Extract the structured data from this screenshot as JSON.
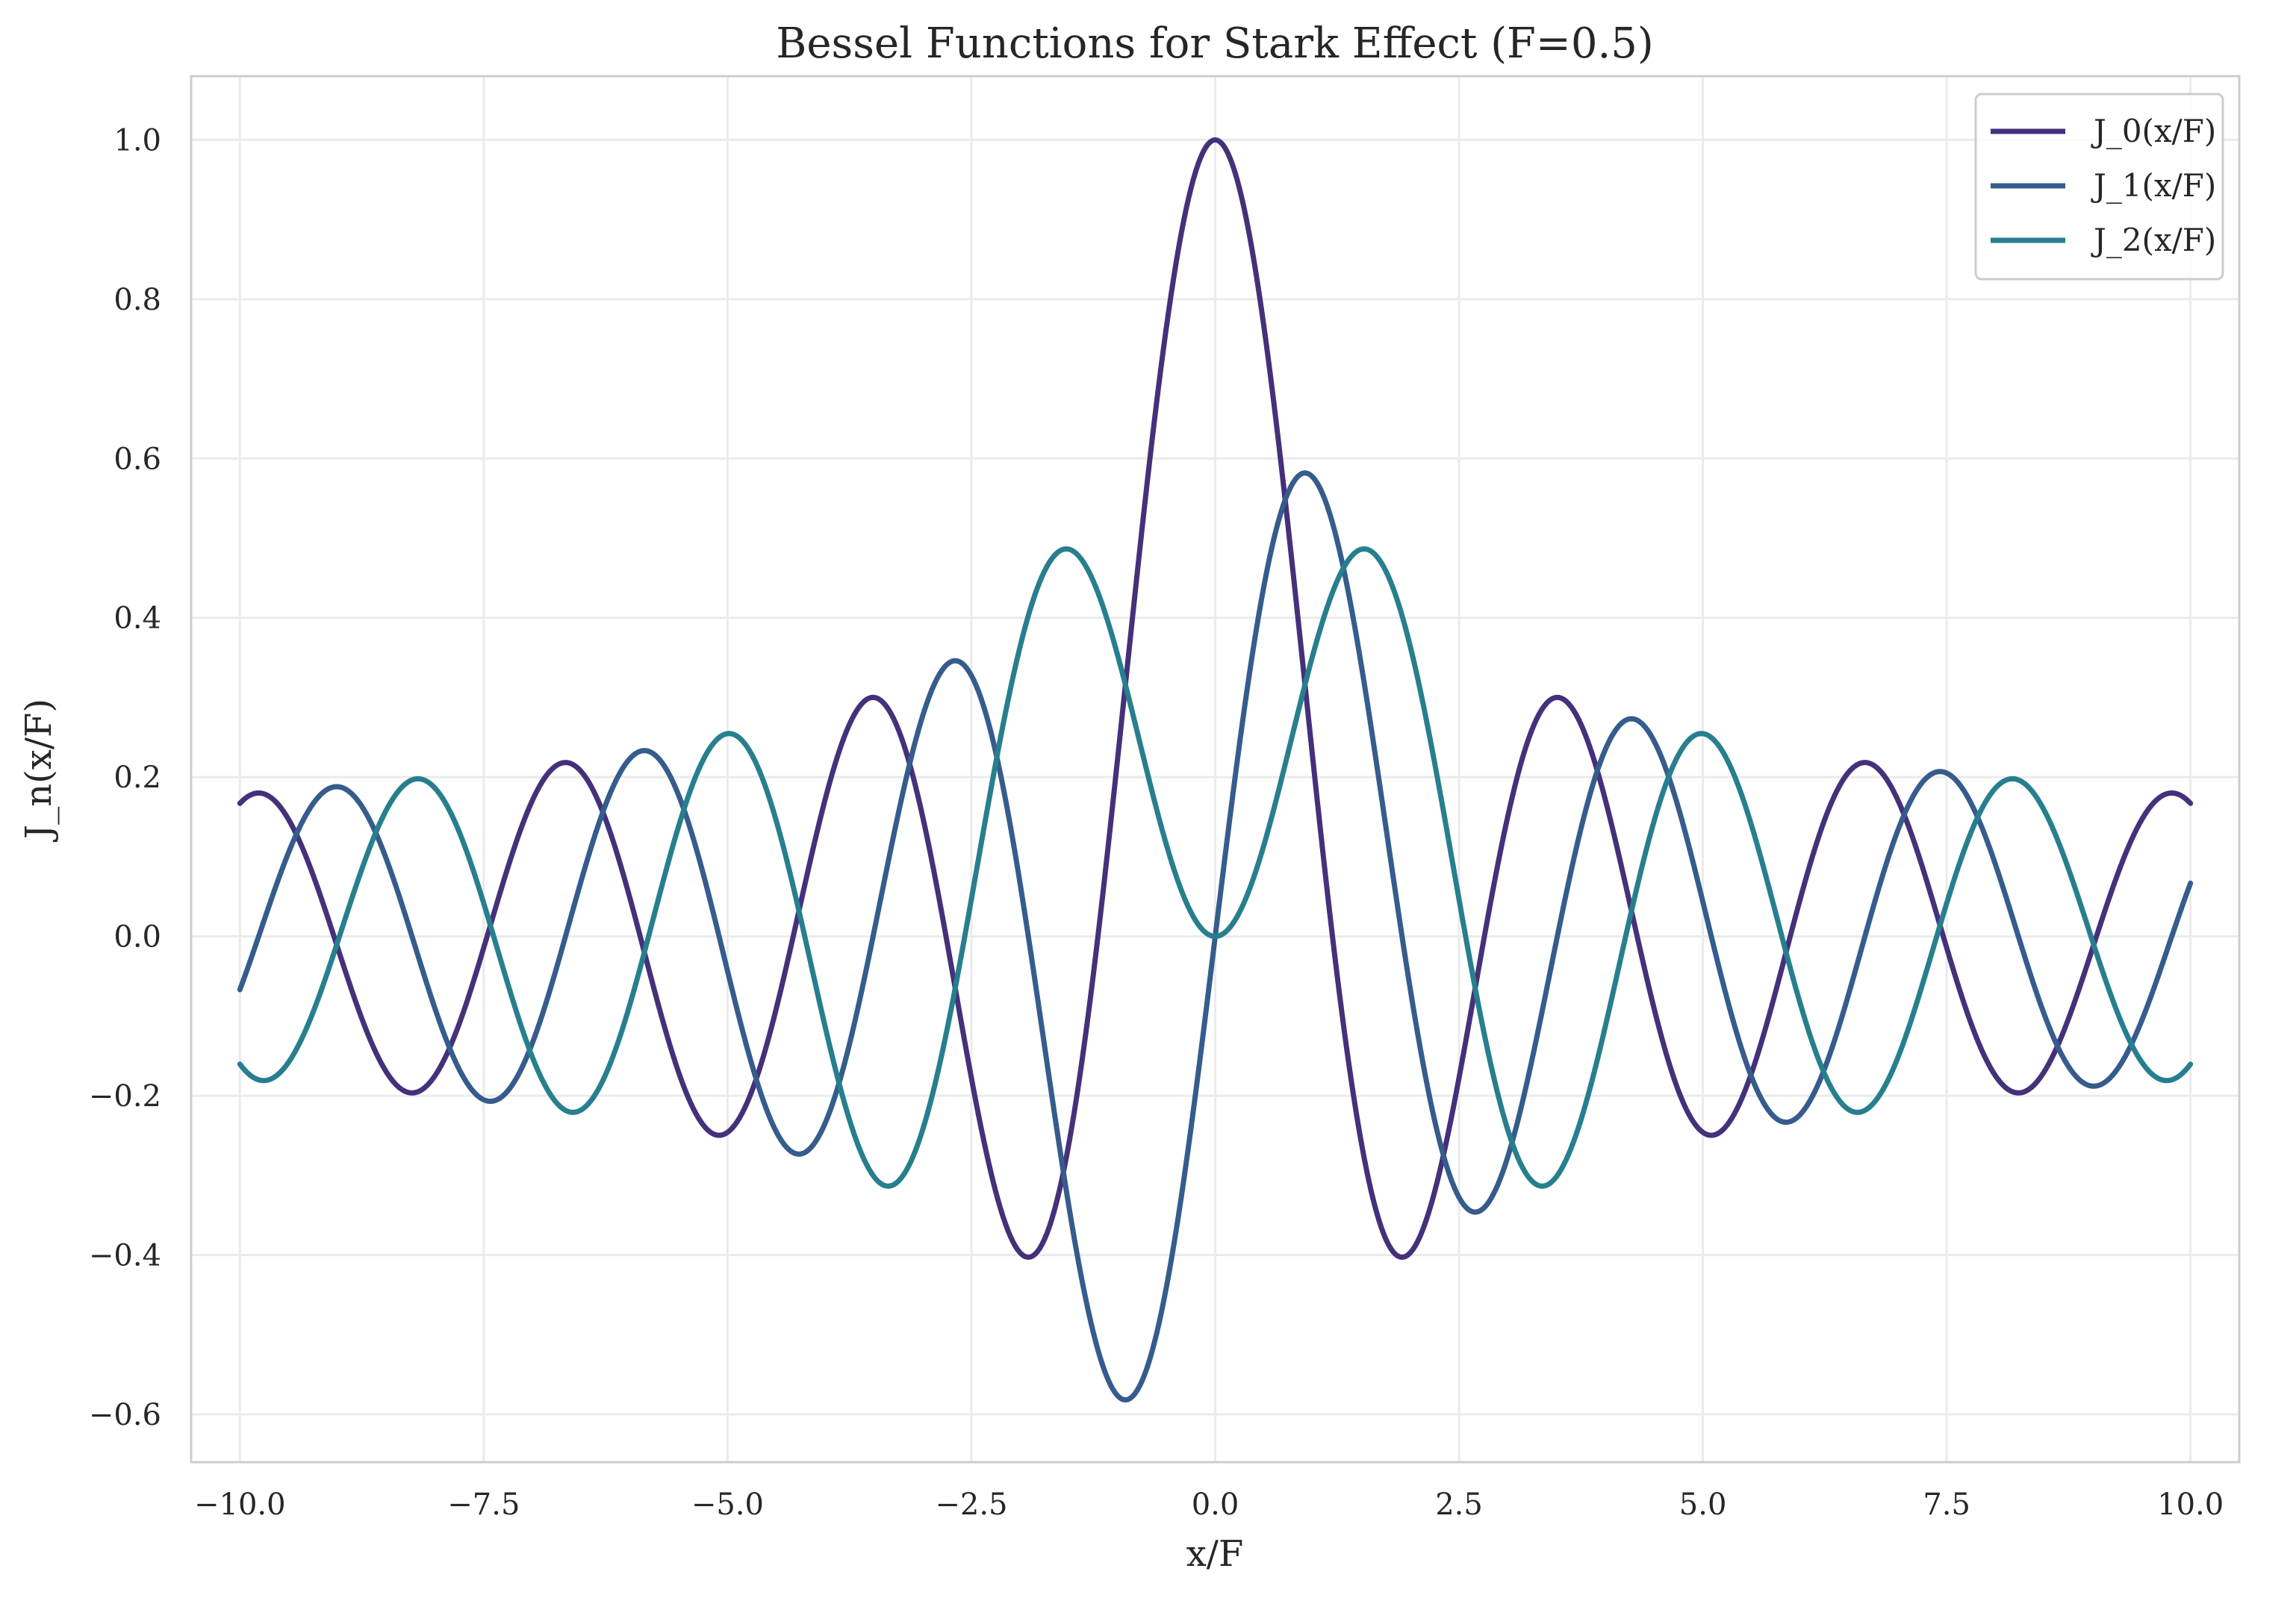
{
  "chart_data": {
    "type": "line",
    "title": "Bessel Functions for Stark Effect (F=0.5)",
    "xlabel": "x/F",
    "ylabel": "J_n(x/F)",
    "xlim": [
      -10.5,
      10.5
    ],
    "ylim": [
      -0.66,
      1.08
    ],
    "x_range": [
      -10,
      10
    ],
    "xticks": [
      -10.0,
      -7.5,
      -5.0,
      -2.5,
      0.0,
      2.5,
      5.0,
      7.5,
      10.0
    ],
    "xtick_labels": [
      "−10.0",
      "−7.5",
      "−5.0",
      "−2.5",
      "0.0",
      "2.5",
      "5.0",
      "7.5",
      "10.0"
    ],
    "yticks": [
      -0.6,
      -0.4,
      -0.2,
      0.0,
      0.2,
      0.4,
      0.6,
      0.8,
      1.0
    ],
    "ytick_labels": [
      "−0.6",
      "−0.4",
      "−0.2",
      "0.0",
      "0.2",
      "0.4",
      "0.6",
      "0.8",
      "1.0"
    ],
    "grid": true,
    "legend_position": "top-right",
    "series": [
      {
        "name": "J_0(x/F)",
        "order": 0,
        "color": "#45307a"
      },
      {
        "name": "J_1(x/F)",
        "order": 1,
        "color": "#355c8c"
      },
      {
        "name": "J_2(x/F)",
        "order": 2,
        "color": "#277f8e"
      }
    ]
  }
}
